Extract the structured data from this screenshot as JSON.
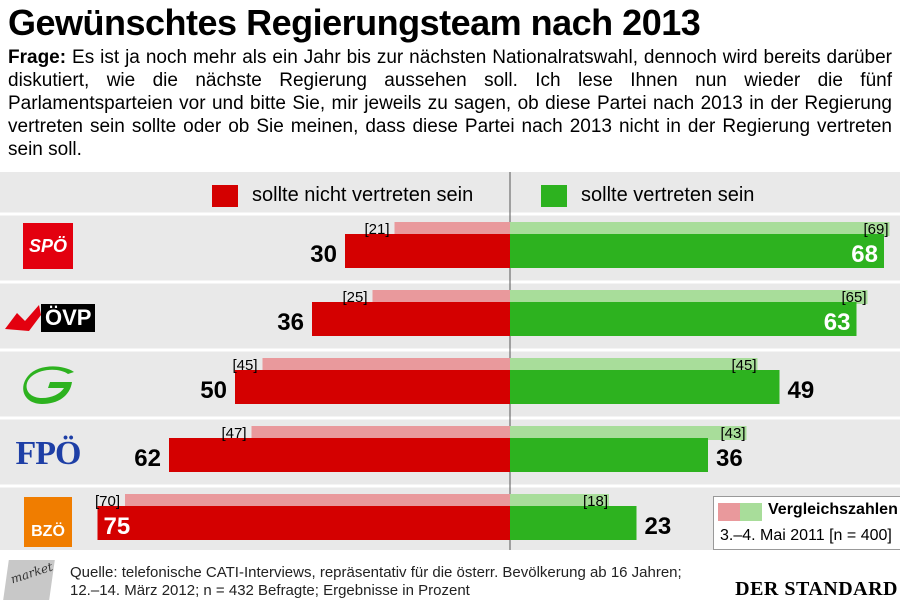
{
  "title": "Gewünschtes Regierungsteam nach 2013",
  "question": {
    "label": "Frage:",
    "text": "Es ist ja noch mehr als ein Jahr bis zur nächsten Nationalratswahl, dennoch wird bereits darüber diskutiert, wie die nächste Regierung aussehen soll. Ich lese Ihnen nun wieder die fünf Parlamentsparteien vor und bitte Sie, mir jeweils zu sagen, ob diese Partei nach 2013 in der Regierung vertreten sein sollte oder ob Sie meinen, dass diese Partei nach 2013 nicht in der Regierung vertreten sein soll."
  },
  "colors": {
    "red": "#d40000",
    "red_light": "#e9999c",
    "green": "#2db21f",
    "green_light": "#a8dd9a",
    "background": "#e9e9e9",
    "spoe": "#e3000f",
    "oevp": "#e3000f",
    "gruene": "#2db21f",
    "fpoe": "#1e3fa6",
    "bzoe": "#f07d00"
  },
  "chart_data": {
    "type": "bar",
    "orientation": "horizontal-diverging",
    "categories": [
      "SPÖ",
      "ÖVP",
      "Grüne",
      "FPÖ",
      "BZÖ"
    ],
    "series": [
      {
        "name": "sollte nicht vertreten sein",
        "values": [
          30,
          36,
          50,
          62,
          75
        ],
        "comparison": [
          21,
          25,
          45,
          47,
          70
        ]
      },
      {
        "name": "sollte vertreten sein",
        "values": [
          68,
          63,
          49,
          36,
          23
        ],
        "comparison": [
          69,
          65,
          45,
          43,
          18
        ]
      }
    ],
    "comparison_label": "Vergleichszahlen",
    "comparison_period": "3.–4. Mai 2011 [n = 400]",
    "unit": "Prozent"
  },
  "logos": {
    "spoe": "SPÖ",
    "oevp": "ÖVP",
    "fpoe": "FPÖ",
    "bzoe": "BZÖ",
    "gruene_icon": "gruene-logo-icon"
  },
  "footer": {
    "market": "market",
    "source_line1": "Quelle: telefonische CATI-Interviews, repräsentativ für die österr. Bevölkerung ab 16 Jahren;",
    "source_line2": "12.–14. März 2012; n = 432 Befragte; Ergebnisse in Prozent",
    "publisher": "DER STANDARD"
  }
}
